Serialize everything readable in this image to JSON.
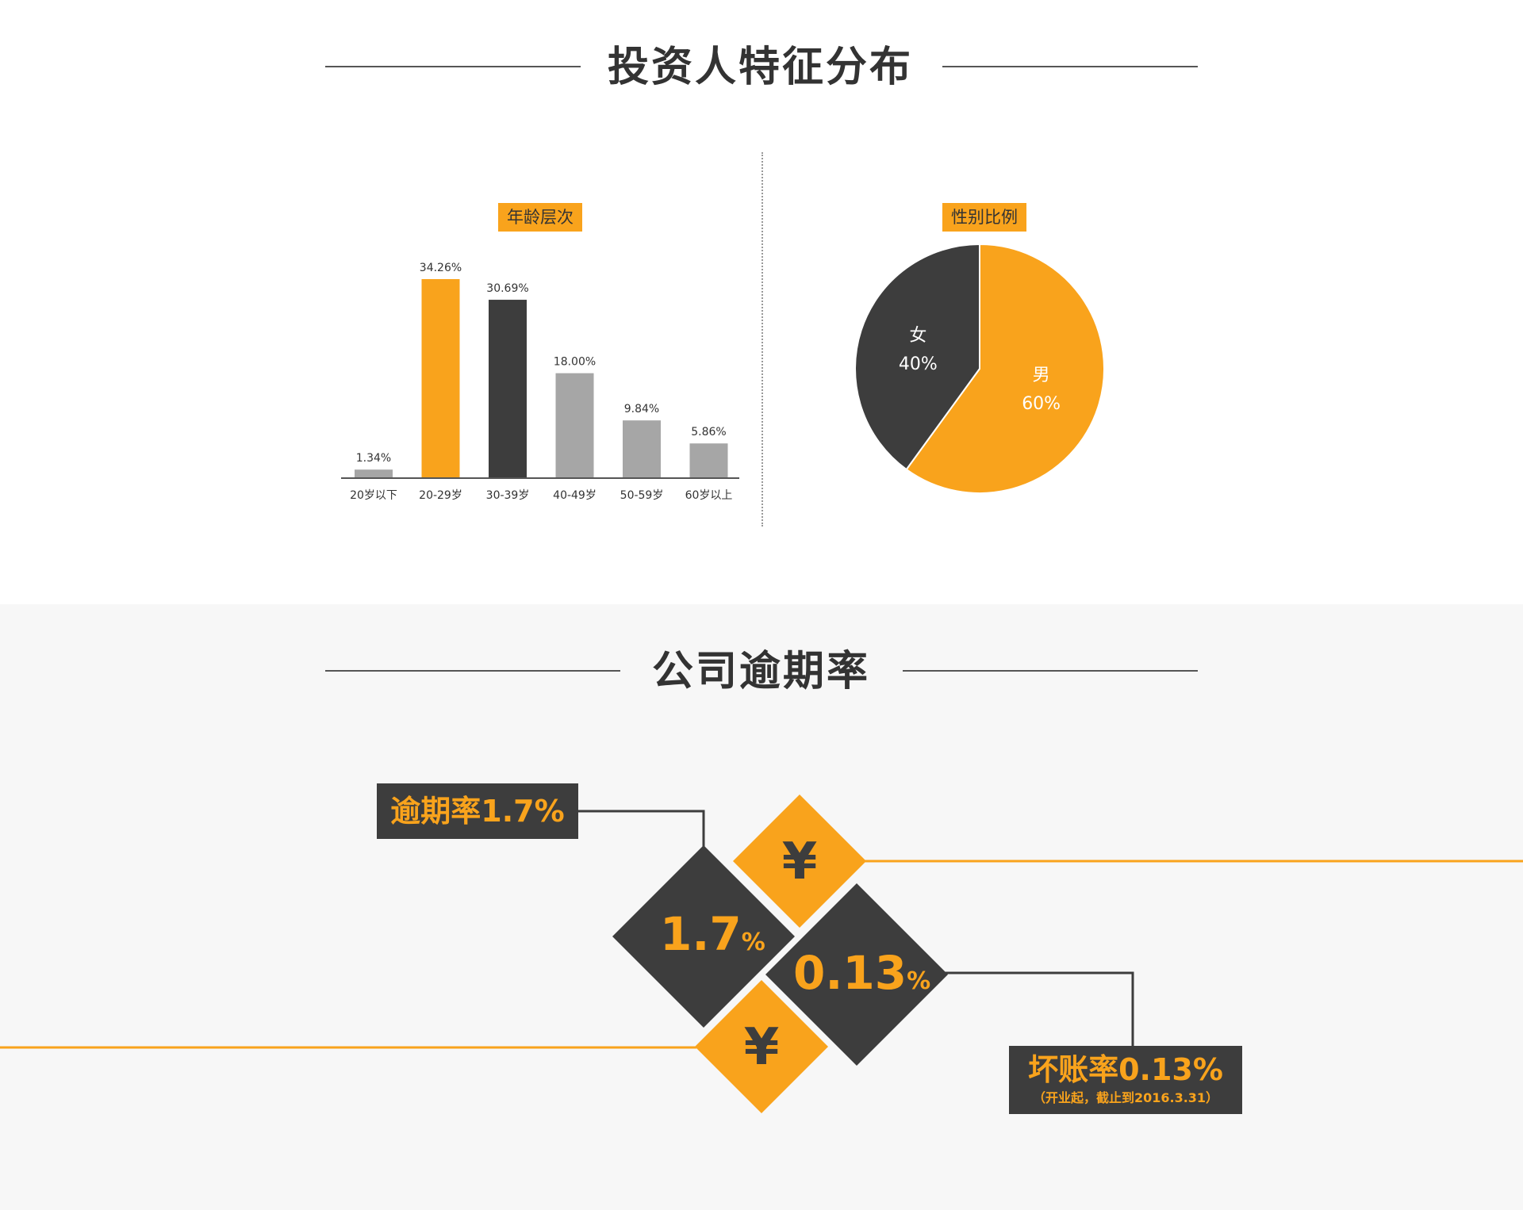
{
  "section1": {
    "title": "投资人特征分布"
  },
  "age_chart": {
    "label": "年龄层次"
  },
  "gender_chart": {
    "label": "性别比例"
  },
  "section2": {
    "title": "公司逾期率"
  },
  "overdue": {
    "label": "逾期率1.7%",
    "rate_value": "1.7",
    "rate_unit": "%",
    "currency_symbol": "¥"
  },
  "bad_debt": {
    "label": "坏账率0.13%",
    "note": "（开业起，截止到2016.3.31）",
    "rate_value": "0.13",
    "rate_unit": "%"
  },
  "colors": {
    "accent": "#f9a31c",
    "dark": "#3d3d3d",
    "gray": "#a6a6a6",
    "background_alt": "#f7f7f7"
  },
  "chart_data": [
    {
      "type": "bar",
      "title": "年龄层次",
      "categories": [
        "20岁以下",
        "20-29岁",
        "30-39岁",
        "40-49岁",
        "50-59岁",
        "60岁以上"
      ],
      "values": [
        1.34,
        34.26,
        30.69,
        18.0,
        9.84,
        5.86
      ],
      "value_labels": [
        "1.34%",
        "34.26%",
        "30.69%",
        "18.00%",
        "9.84%",
        "5.86%"
      ],
      "bar_colors": [
        "#a6a6a6",
        "#f9a31c",
        "#3d3d3d",
        "#a6a6a6",
        "#a6a6a6",
        "#a6a6a6"
      ],
      "ylim": [
        0,
        34.26
      ],
      "grid": false
    },
    {
      "type": "pie",
      "title": "性别比例",
      "slices": [
        {
          "label": "男",
          "value": 60,
          "value_label": "60%",
          "color": "#f9a31c"
        },
        {
          "label": "女",
          "value": 40,
          "value_label": "40%",
          "color": "#3d3d3d"
        }
      ]
    }
  ]
}
